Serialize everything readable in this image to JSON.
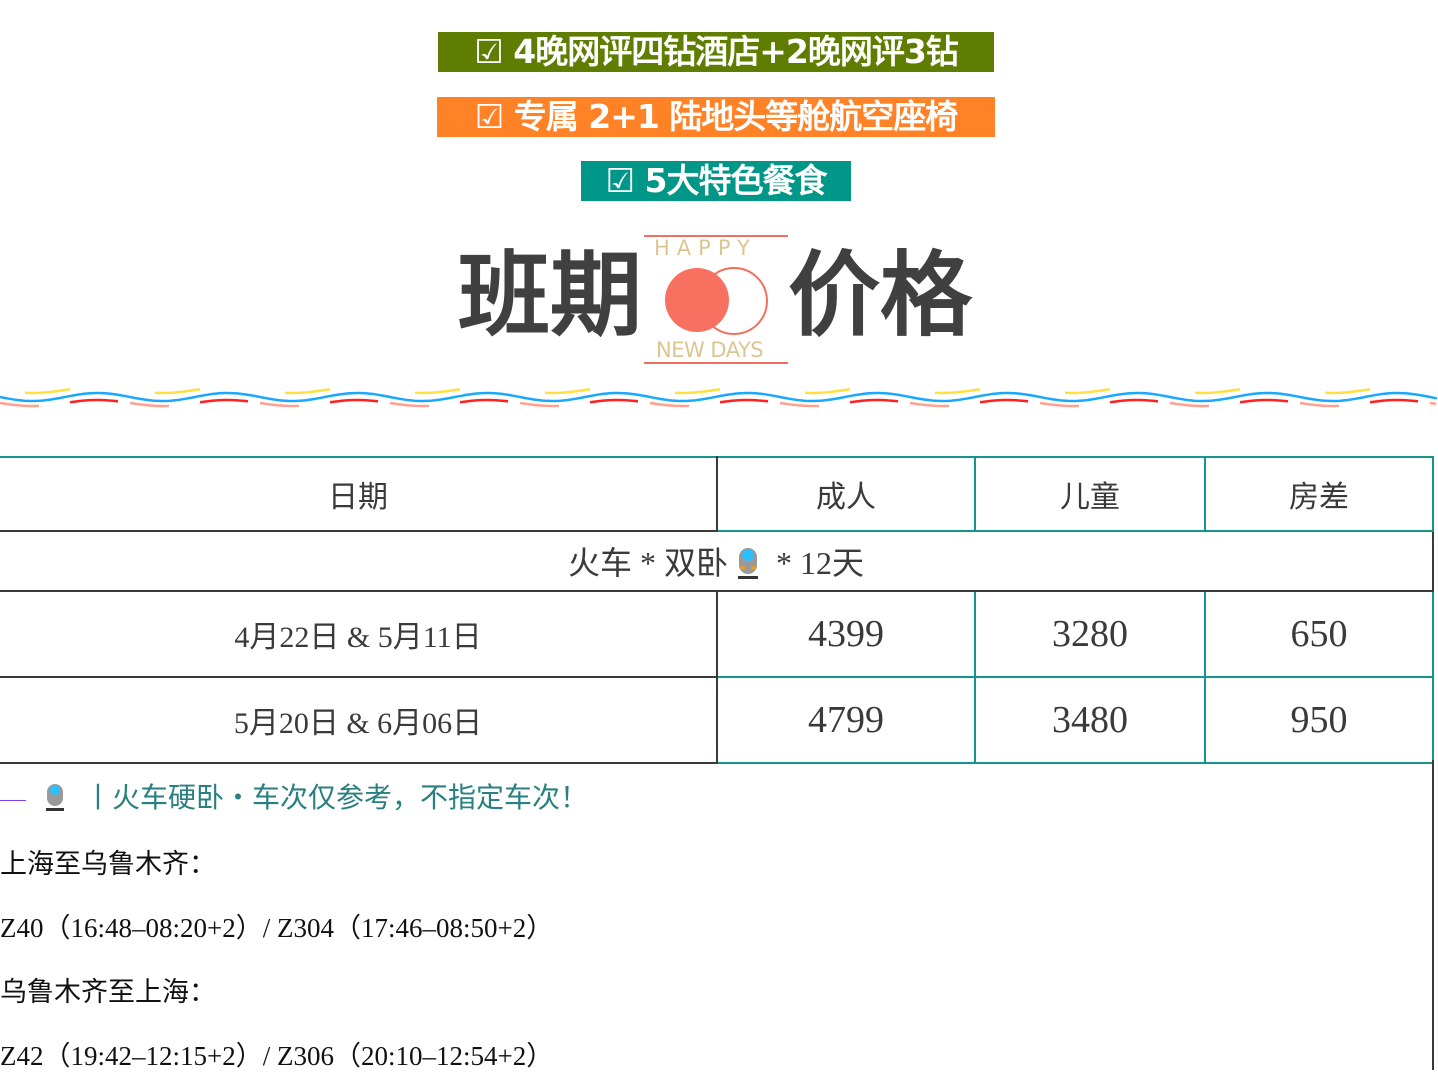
{
  "banners": [
    {
      "text": "☑ 4晚网评四钻酒店+2晚网评3钻",
      "color": "#5f7d00"
    },
    {
      "text": "☑ 专属 2+1 陆地头等舱航空座椅",
      "color": "#ff8226"
    },
    {
      "text": "☑ 5大特色餐食",
      "color": "#009688"
    }
  ],
  "heading": {
    "left": "班期",
    "right": "价格",
    "logo_top": "HAPPY",
    "logo_bottom": "NEW DAYS"
  },
  "table": {
    "headers": [
      "日期",
      "成人",
      "儿童",
      "房差"
    ],
    "section": {
      "text_before": "火车 * 双卧",
      "icon": "train-icon",
      "text_after": " * 12天"
    },
    "rows": [
      {
        "date": "4月22日 & 5月11日",
        "adult": "4399",
        "child": "3280",
        "room": "650"
      },
      {
        "date": "5月20日 & 6月06日",
        "adult": "4799",
        "child": "3480",
        "room": "950"
      }
    ]
  },
  "note": {
    "icon": "train-icon",
    "text": "丨火车硬卧・车次仅参考，不指定车次！"
  },
  "schedule": [
    "上海至乌鲁木齐：",
    "Z40（16:48–08:20+2）/ Z304（17:46–08:50+2）",
    "乌鲁木齐至上海：",
    "Z42（19:42–12:15+2）/ Z306（20:10–12:54+2）"
  ]
}
